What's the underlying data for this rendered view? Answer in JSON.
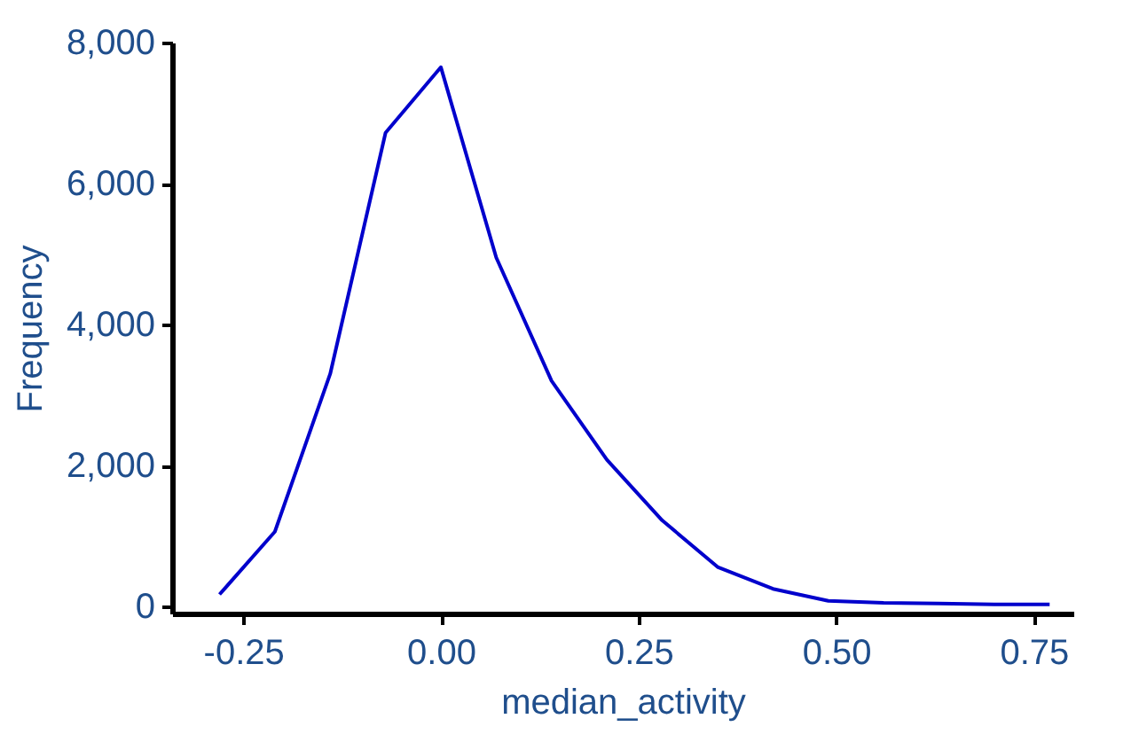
{
  "chart_data": {
    "type": "line",
    "xlabel": "median_activity",
    "ylabel": "Frequency",
    "x": [
      -0.28,
      -0.21,
      -0.14,
      -0.07,
      0.0,
      0.07,
      0.14,
      0.21,
      0.28,
      0.35,
      0.42,
      0.49,
      0.56,
      0.63,
      0.7,
      0.77
    ],
    "series": [
      {
        "color": "#0000cc",
        "values": [
          170,
          1060,
          3300,
          6720,
          7650,
          4950,
          3200,
          2080,
          1220,
          560,
          250,
          80,
          50,
          40,
          30,
          30
        ]
      }
    ],
    "xlim": [
      -0.34,
      0.8
    ],
    "xticks": [
      {
        "value": -0.25,
        "label": "-0.25"
      },
      {
        "value": 0.0,
        "label": "0.00"
      },
      {
        "value": 0.25,
        "label": "0.25"
      },
      {
        "value": 0.5,
        "label": "0.50"
      },
      {
        "value": 0.75,
        "label": "0.75"
      }
    ],
    "ylim": [
      -100,
      8000
    ],
    "yticks": [
      0,
      {
        "value": 2000,
        "label": "2,000"
      },
      {
        "value": 4000,
        "label": "4,000"
      },
      {
        "value": 6000,
        "label": "6,000"
      },
      {
        "value": 8000,
        "label": "8,000"
      }
    ],
    "grid": false,
    "marker": "none",
    "line_style": "solid"
  }
}
